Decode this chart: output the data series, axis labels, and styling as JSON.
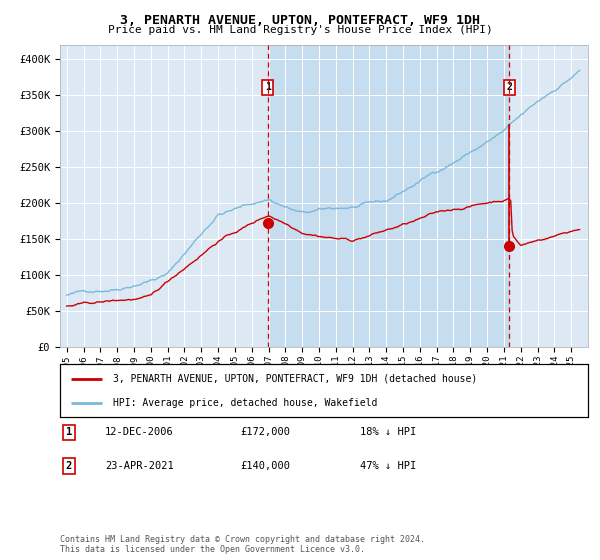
{
  "title": "3, PENARTH AVENUE, UPTON, PONTEFRACT, WF9 1DH",
  "subtitle": "Price paid vs. HM Land Registry's House Price Index (HPI)",
  "bg_color": "#dce9f5",
  "hpi_color": "#7ab8d9",
  "price_color": "#cc0000",
  "ylim": [
    0,
    420000
  ],
  "yticks": [
    0,
    50000,
    100000,
    150000,
    200000,
    250000,
    300000,
    350000,
    400000
  ],
  "ytick_labels": [
    "£0",
    "£50K",
    "£100K",
    "£150K",
    "£200K",
    "£250K",
    "£300K",
    "£350K",
    "£400K"
  ],
  "xlim_start": 1994.6,
  "xlim_end": 2026.0,
  "year_start": 1995,
  "year_end": 2025,
  "marker1_year": 2006.95,
  "marker1_price": 172000,
  "marker1_label": "1",
  "marker1_date": "12-DEC-2006",
  "marker1_amount": "£172,000",
  "marker1_pct": "18% ↓ HPI",
  "marker2_year": 2021.31,
  "marker2_price": 140000,
  "marker2_label": "2",
  "marker2_date": "23-APR-2021",
  "marker2_amount": "£140,000",
  "marker2_pct": "47% ↓ HPI",
  "legend_label1": "3, PENARTH AVENUE, UPTON, PONTEFRACT, WF9 1DH (detached house)",
  "legend_label2": "HPI: Average price, detached house, Wakefield",
  "footer": "Contains HM Land Registry data © Crown copyright and database right 2024.\nThis data is licensed under the Open Government Licence v3.0."
}
